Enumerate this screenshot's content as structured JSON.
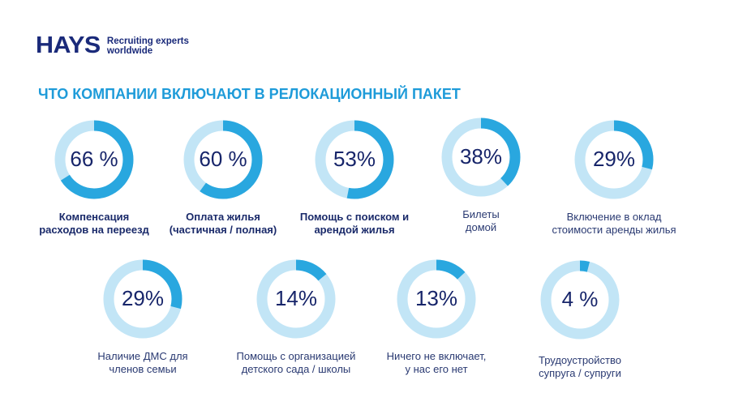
{
  "logo": {
    "brand": "HAYS",
    "tagline_1": "Recruiting experts",
    "tagline_2": "worldwide"
  },
  "colors": {
    "filled": "#29a7df",
    "track": "#c2e5f6",
    "title": "#1e9bd9",
    "text": "#17256a"
  },
  "chart_data": {
    "type": "pie",
    "subtype": "donut",
    "title": "ЧТО КОМПАНИИ ВКЛЮЧАЮТ В РЕЛОКАЦИОННЫЙ ПАКЕТ",
    "items": [
      {
        "value": 66,
        "display": "66 %",
        "label_1": "Компенсация",
        "label_2": "расходов на переезд",
        "bold": true
      },
      {
        "value": 60,
        "display": "60 %",
        "label_1": "Оплата жилья",
        "label_2": "(частичная / полная)",
        "bold": true
      },
      {
        "value": 53,
        "display": "53%",
        "label_1": "Помощь с поиском и",
        "label_2": "арендой жилья",
        "bold": true
      },
      {
        "value": 38,
        "display": "38%",
        "label_1": "Билеты",
        "label_2": "домой",
        "bold": false
      },
      {
        "value": 29,
        "display": "29%",
        "label_1": "Включение в оклад",
        "label_2": "стоимости аренды жилья",
        "bold": false
      },
      {
        "value": 29,
        "display": "29%",
        "label_1": "Наличие ДМС для",
        "label_2": "членов семьи",
        "bold": false
      },
      {
        "value": 14,
        "display": "14%",
        "label_1": "Помощь с организацией",
        "label_2": "детского сада / школы",
        "bold": false
      },
      {
        "value": 13,
        "display": "13%",
        "label_1": "Ничего не включает,",
        "label_2": "у нас его нет",
        "bold": false
      },
      {
        "value": 4,
        "display": "4 %",
        "label_1": "Трудоустройство",
        "label_2": "супруга / супруги",
        "bold": false
      }
    ]
  }
}
